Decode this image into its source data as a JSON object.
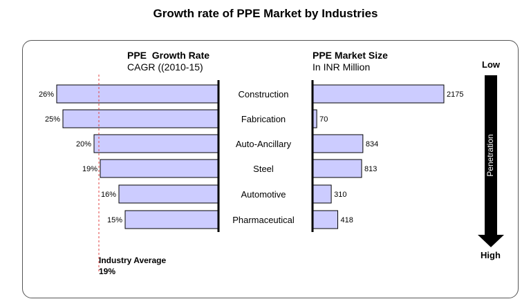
{
  "chart_data": {
    "type": "bar",
    "title": "Growth rate of PPE Market by Industries",
    "categories": [
      "Construction",
      "Fabrication",
      "Auto-Ancillary",
      "Steel",
      "Automotive",
      "Pharmaceutical"
    ],
    "left_panel": {
      "title": "PPE  Growth Rate",
      "subtitle": "CAGR ((2010-15)",
      "values": [
        26,
        25,
        20,
        19,
        16,
        15
      ],
      "value_labels": [
        "26%",
        "25%",
        "20%",
        "19%",
        "16%",
        "15%"
      ],
      "reference_line": {
        "label": "Industry Average",
        "value_label": "19%"
      }
    },
    "right_panel": {
      "title": "PPE Market Size",
      "subtitle": "In INR Million",
      "values": [
        2175,
        70,
        834,
        813,
        310,
        418
      ],
      "value_labels": [
        "2175",
        "70",
        "834",
        "813",
        "310",
        "418"
      ]
    },
    "penetration_arrow": {
      "top_label": "Low",
      "bottom_label": "High",
      "label": "Penetration"
    },
    "colors": {
      "bar_fill": "#ccccff",
      "bar_stroke": "#000000",
      "reference_line": "#e04040",
      "arrow": "#000000"
    }
  }
}
